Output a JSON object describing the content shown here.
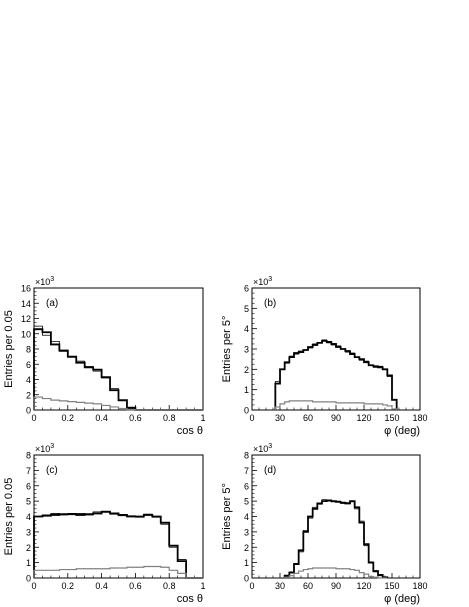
{
  "chart_data": [
    {
      "id": "a",
      "type": "histogram",
      "panel_label": "(a)",
      "xlabel": "cos θ",
      "ylabel": "Entries per 0.05",
      "multiplier": "×10",
      "multiplier_exp": "3",
      "xlim": [
        0,
        1
      ],
      "ylim": [
        0,
        16
      ],
      "x_ticks": [
        0,
        0.2,
        0.4,
        0.6,
        0.8,
        1
      ],
      "x_tick_labels": [
        "0",
        "0.2",
        "0.4",
        "0.6",
        "0.8",
        "1"
      ],
      "y_ticks": [
        0,
        2,
        4,
        6,
        8,
        10,
        12,
        14,
        16
      ],
      "y_tick_labels": [
        "0",
        "2",
        "4",
        "6",
        "8",
        "10",
        "12",
        "14",
        "16"
      ],
      "bin_edges": [
        0,
        0.05,
        0.1,
        0.15,
        0.2,
        0.25,
        0.3,
        0.35,
        0.4,
        0.45,
        0.5,
        0.55,
        0.6,
        0.65,
        0.7,
        0.75,
        0.8,
        0.85,
        0.9,
        0.95,
        1.0
      ],
      "series": [
        {
          "style": "thick",
          "color": "#000000",
          "values": [
            10.6,
            10.2,
            8.6,
            7.8,
            7.0,
            6.2,
            5.6,
            5.3,
            4.3,
            2.6,
            1.3,
            0.3,
            0,
            0,
            0,
            0,
            0,
            0,
            0,
            0
          ]
        },
        {
          "style": "thin",
          "color": "#000000",
          "values": [
            11.0,
            9.8,
            9.0,
            7.7,
            6.9,
            6.4,
            5.7,
            5.1,
            4.2,
            2.8,
            1.2,
            0.2,
            0,
            0,
            0,
            0,
            0,
            0,
            0,
            0
          ]
        },
        {
          "style": "grey",
          "color": "#808080",
          "values": [
            1.7,
            1.5,
            1.3,
            1.2,
            1.1,
            1.0,
            0.9,
            0.8,
            0.6,
            0.4,
            0.2,
            0.05,
            0,
            0,
            0,
            0,
            0,
            0,
            0,
            0
          ]
        }
      ]
    },
    {
      "id": "b",
      "type": "histogram",
      "panel_label": "(b)",
      "xlabel": "φ  (deg)",
      "ylabel": "Entries per 5°",
      "multiplier": "×10",
      "multiplier_exp": "3",
      "xlim": [
        0,
        180
      ],
      "ylim": [
        0,
        6
      ],
      "x_ticks": [
        0,
        30,
        60,
        90,
        120,
        150,
        180
      ],
      "x_tick_labels": [
        "0",
        "30",
        "60",
        "90",
        "120",
        "150",
        "180"
      ],
      "y_ticks": [
        0,
        1,
        2,
        3,
        4,
        5,
        6
      ],
      "y_tick_labels": [
        "0",
        "1",
        "2",
        "3",
        "4",
        "5",
        "6"
      ],
      "bin_edges": [
        25,
        30,
        35,
        40,
        45,
        50,
        55,
        60,
        65,
        70,
        75,
        80,
        85,
        90,
        95,
        100,
        105,
        110,
        115,
        120,
        125,
        130,
        135,
        140,
        145,
        150,
        155
      ],
      "series": [
        {
          "style": "thick",
          "color": "#000000",
          "values": [
            1.3,
            2.0,
            2.35,
            2.6,
            2.8,
            2.85,
            2.95,
            3.1,
            3.2,
            3.3,
            3.4,
            3.35,
            3.25,
            3.1,
            3.0,
            2.9,
            2.75,
            2.6,
            2.5,
            2.35,
            2.2,
            2.15,
            2.1,
            2.0,
            1.7,
            0.5
          ]
        },
        {
          "style": "thin",
          "color": "#000000",
          "values": [
            1.4,
            2.0,
            2.3,
            2.65,
            2.75,
            2.9,
            2.95,
            3.05,
            3.25,
            3.3,
            3.45,
            3.3,
            3.2,
            3.15,
            3.0,
            2.85,
            2.8,
            2.6,
            2.45,
            2.4,
            2.2,
            2.1,
            2.15,
            2.0,
            1.65,
            0.5
          ]
        },
        {
          "style": "grey",
          "color": "#808080",
          "values": [
            0.15,
            0.3,
            0.4,
            0.45,
            0.45,
            0.45,
            0.45,
            0.45,
            0.4,
            0.4,
            0.4,
            0.4,
            0.4,
            0.35,
            0.35,
            0.35,
            0.35,
            0.35,
            0.35,
            0.3,
            0.3,
            0.3,
            0.3,
            0.25,
            0.2,
            0.05
          ]
        }
      ]
    },
    {
      "id": "c",
      "type": "histogram",
      "panel_label": "(c)",
      "xlabel": "cos θ",
      "ylabel": "Entries per 0.05",
      "multiplier": "×10",
      "multiplier_exp": "3",
      "xlim": [
        0,
        1
      ],
      "ylim": [
        0,
        8
      ],
      "x_ticks": [
        0,
        0.2,
        0.4,
        0.6,
        0.8,
        1
      ],
      "x_tick_labels": [
        "0",
        "0.2",
        "0.4",
        "0.6",
        "0.8",
        "1"
      ],
      "y_ticks": [
        0,
        1,
        2,
        3,
        4,
        5,
        6,
        7,
        8
      ],
      "y_tick_labels": [
        "0",
        "1",
        "2",
        "3",
        "4",
        "5",
        "6",
        "7",
        "8"
      ],
      "bin_edges": [
        0,
        0.05,
        0.1,
        0.15,
        0.2,
        0.25,
        0.3,
        0.35,
        0.4,
        0.45,
        0.5,
        0.55,
        0.6,
        0.65,
        0.7,
        0.75,
        0.8,
        0.85,
        0.9,
        0.95,
        1.0
      ],
      "series": [
        {
          "style": "thick",
          "color": "#000000",
          "values": [
            4.0,
            4.05,
            4.1,
            4.15,
            4.15,
            4.1,
            4.15,
            4.2,
            4.3,
            4.2,
            4.1,
            4.0,
            4.0,
            4.1,
            4.0,
            3.6,
            2.1,
            1.1,
            0,
            0
          ]
        },
        {
          "style": "thin",
          "color": "#000000",
          "values": [
            4.0,
            4.1,
            4.2,
            4.1,
            4.2,
            4.2,
            4.1,
            4.3,
            4.35,
            4.15,
            4.05,
            4.05,
            3.95,
            4.15,
            3.95,
            3.5,
            2.0,
            1.2,
            0,
            0
          ]
        },
        {
          "style": "grey",
          "color": "#808080",
          "values": [
            0.5,
            0.5,
            0.5,
            0.55,
            0.55,
            0.6,
            0.6,
            0.6,
            0.6,
            0.65,
            0.65,
            0.7,
            0.7,
            0.75,
            0.75,
            0.7,
            0.5,
            0.3,
            0,
            0
          ]
        }
      ]
    },
    {
      "id": "d",
      "type": "histogram",
      "panel_label": "(d)",
      "xlabel": "φ  (deg)",
      "ylabel": "Entries per 5°",
      "multiplier": "×10",
      "multiplier_exp": "3",
      "xlim": [
        0,
        180
      ],
      "ylim": [
        0,
        8
      ],
      "x_ticks": [
        0,
        30,
        60,
        90,
        120,
        150,
        180
      ],
      "x_tick_labels": [
        "0",
        "30",
        "60",
        "90",
        "120",
        "150",
        "180"
      ],
      "y_ticks": [
        0,
        1,
        2,
        3,
        4,
        5,
        6,
        7,
        8
      ],
      "y_tick_labels": [
        "0",
        "1",
        "2",
        "3",
        "4",
        "5",
        "6",
        "7",
        "8"
      ],
      "bin_edges": [
        35,
        40,
        45,
        50,
        55,
        60,
        65,
        70,
        75,
        80,
        85,
        90,
        95,
        100,
        105,
        110,
        115,
        120,
        125,
        130,
        135,
        140,
        145
      ],
      "series": [
        {
          "style": "thick",
          "color": "#000000",
          "values": [
            0.15,
            0.35,
            0.9,
            1.8,
            3.0,
            4.0,
            4.5,
            4.85,
            5.0,
            5.05,
            5.0,
            4.95,
            4.9,
            4.85,
            5.0,
            4.6,
            3.6,
            2.2,
            1.0,
            0.45,
            0.2,
            0.05
          ]
        },
        {
          "style": "thin",
          "color": "#000000",
          "values": [
            0.1,
            0.4,
            0.95,
            1.7,
            3.1,
            3.9,
            4.6,
            4.8,
            5.1,
            5.0,
            4.95,
            5.0,
            4.85,
            4.9,
            4.95,
            4.5,
            3.7,
            2.1,
            1.05,
            0.4,
            0.15,
            0.05
          ]
        },
        {
          "style": "grey",
          "color": "#808080",
          "values": [
            0.05,
            0.15,
            0.3,
            0.45,
            0.55,
            0.6,
            0.65,
            0.65,
            0.65,
            0.65,
            0.65,
            0.6,
            0.6,
            0.6,
            0.55,
            0.5,
            0.35,
            0.25,
            0.1,
            0.05,
            0.0,
            0.0
          ]
        }
      ]
    }
  ]
}
